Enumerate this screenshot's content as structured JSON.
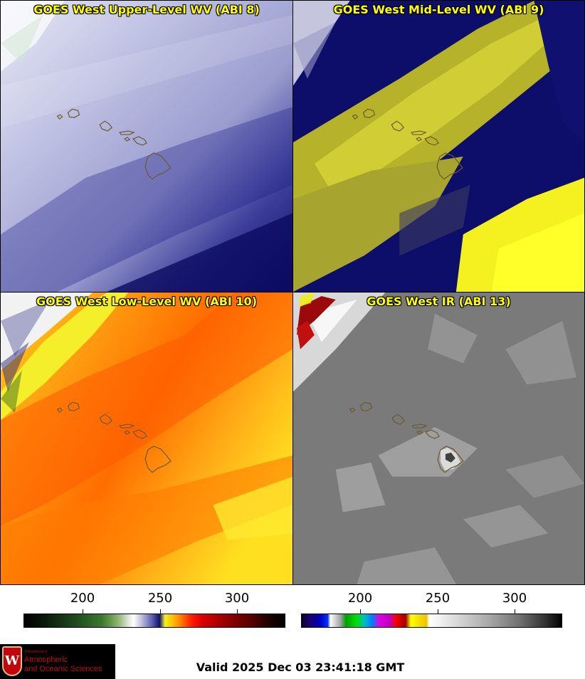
{
  "panels": [
    {
      "title": "GOES West Upper-Level WV (ABI 8)"
    },
    {
      "title": "GOES West Mid-Level WV (ABI 9)"
    },
    {
      "title": "GOES West Low-Level WV (ABI 10)"
    },
    {
      "title": "GOES West IR (ABI 13)"
    }
  ],
  "colorbars": {
    "left_ticks": [
      "200",
      "250",
      "300"
    ],
    "right_ticks": [
      "200",
      "250",
      "300"
    ]
  },
  "logo": {
    "line1": "Department of",
    "line2": "Atmospheric",
    "line3": "and Oceanic Sciences",
    "seal_letter": "W"
  },
  "valid_time": "Valid 2025 Dec 03 23:41:18 GMT",
  "colors": {
    "title_text": "#ffff00",
    "island_outline": "#6b5a2a"
  }
}
